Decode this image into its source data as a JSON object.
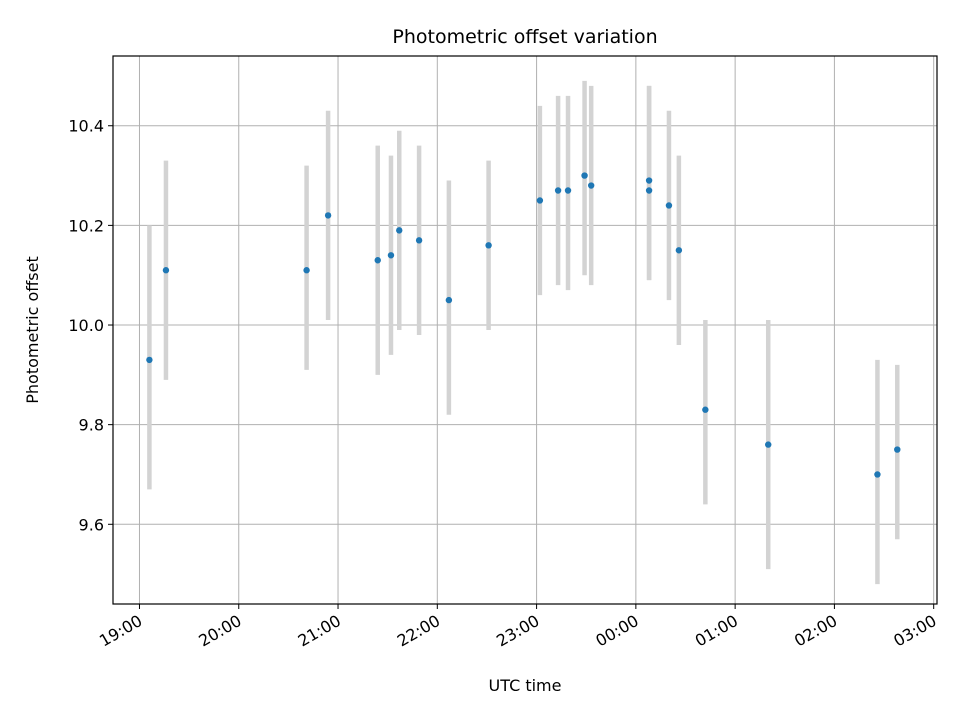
{
  "chart_data": {
    "type": "scatter",
    "title": "Photometric offset variation",
    "xlabel": "UTC time",
    "ylabel": "Photometric offset",
    "x_ticks": [
      "19:00",
      "20:00",
      "21:00",
      "22:00",
      "23:00",
      "00:00",
      "01:00",
      "02:00",
      "03:00"
    ],
    "y_ticks": [
      "9.6",
      "9.8",
      "10.0",
      "10.2",
      "10.4"
    ],
    "y_tick_values": [
      9.6,
      9.8,
      10.0,
      10.2,
      10.4
    ],
    "xlim": [
      "18:44",
      "03:02"
    ],
    "ylim": [
      9.44,
      10.54
    ],
    "grid": true,
    "errorbar_color": "#d3d3d3",
    "marker_color": "#1f77b4",
    "series": [
      {
        "points": [
          {
            "x": "19:06",
            "y": 9.93,
            "ylow": 9.67,
            "yhigh": 10.2
          },
          {
            "x": "19:16",
            "y": 10.11,
            "ylow": 9.89,
            "yhigh": 10.33
          },
          {
            "x": "20:41",
            "y": 10.11,
            "ylow": 9.91,
            "yhigh": 10.32
          },
          {
            "x": "20:54",
            "y": 10.22,
            "ylow": 10.01,
            "yhigh": 10.43
          },
          {
            "x": "21:24",
            "y": 10.13,
            "ylow": 9.9,
            "yhigh": 10.36
          },
          {
            "x": "21:32",
            "y": 10.14,
            "ylow": 9.94,
            "yhigh": 10.34
          },
          {
            "x": "21:37",
            "y": 10.19,
            "ylow": 9.99,
            "yhigh": 10.39
          },
          {
            "x": "21:49",
            "y": 10.17,
            "ylow": 9.98,
            "yhigh": 10.36
          },
          {
            "x": "22:07",
            "y": 10.05,
            "ylow": 9.82,
            "yhigh": 10.29
          },
          {
            "x": "22:31",
            "y": 10.16,
            "ylow": 9.99,
            "yhigh": 10.33
          },
          {
            "x": "23:02",
            "y": 10.25,
            "ylow": 10.06,
            "yhigh": 10.44
          },
          {
            "x": "23:13",
            "y": 10.27,
            "ylow": 10.08,
            "yhigh": 10.46
          },
          {
            "x": "23:19",
            "y": 10.27,
            "ylow": 10.07,
            "yhigh": 10.46
          },
          {
            "x": "23:29",
            "y": 10.3,
            "ylow": 10.1,
            "yhigh": 10.49
          },
          {
            "x": "23:33",
            "y": 10.28,
            "ylow": 10.08,
            "yhigh": 10.48
          },
          {
            "x": "00:08",
            "y": 10.29,
            "ylow": 10.09,
            "yhigh": 10.48
          },
          {
            "x": "00:08",
            "y": 10.27,
            "ylow": 10.09,
            "yhigh": 10.48
          },
          {
            "x": "00:20",
            "y": 10.24,
            "ylow": 10.05,
            "yhigh": 10.43
          },
          {
            "x": "00:26",
            "y": 10.15,
            "ylow": 9.96,
            "yhigh": 10.34
          },
          {
            "x": "00:42",
            "y": 9.83,
            "ylow": 9.64,
            "yhigh": 10.01
          },
          {
            "x": "01:20",
            "y": 9.76,
            "ylow": 9.51,
            "yhigh": 10.01
          },
          {
            "x": "02:26",
            "y": 9.7,
            "ylow": 9.48,
            "yhigh": 9.93
          },
          {
            "x": "02:38",
            "y": 9.75,
            "ylow": 9.57,
            "yhigh": 9.92
          }
        ]
      }
    ]
  }
}
